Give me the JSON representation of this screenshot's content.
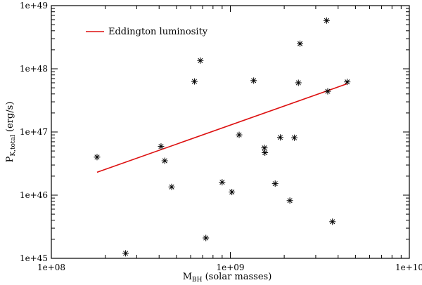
{
  "chart_data": {
    "type": "scatter",
    "xlabel": {
      "main": "M",
      "sub": "BH",
      "rest": " (solar masses)"
    },
    "ylabel": {
      "main": "P",
      "sub": "K,total",
      "rest": " (erg/s)"
    },
    "xscale": "log",
    "yscale": "log",
    "xlim": [
      100000000.0,
      10000000000.0
    ],
    "ylim": [
      1e+45,
      1e+49
    ],
    "xticks": [
      {
        "value": 100000000.0,
        "label": "1e+08"
      },
      {
        "value": 1000000000.0,
        "label": "1e+09"
      },
      {
        "value": 10000000000.0,
        "label": "1e+10"
      }
    ],
    "yticks": [
      {
        "value": 1e+45,
        "label": "1e+45"
      },
      {
        "value": 1e+46,
        "label": "1e+46"
      },
      {
        "value": 1e+47,
        "label": "1e+47"
      },
      {
        "value": 1e+48,
        "label": "1e+48"
      },
      {
        "value": 1e+49,
        "label": "1e+49"
      }
    ],
    "grid": false,
    "legend_position": "top-left",
    "series": [
      {
        "kind": "line",
        "name": "Eddington luminosity",
        "color": "#dd1111",
        "x": [
          180000000.0,
          4500000000.0
        ],
        "y": [
          2.3e+46,
          5.8e+47
        ]
      },
      {
        "kind": "scatter",
        "marker": "asterisk",
        "color": "#000000",
        "x": [
          180000000.0,
          260000000.0,
          410000000.0,
          430000000.0,
          470000000.0,
          630000000.0,
          680000000.0,
          730000000.0,
          900000000.0,
          1020000000.0,
          1120000000.0,
          1350000000.0,
          1550000000.0,
          1560000000.0,
          1780000000.0,
          1900000000.0,
          2150000000.0,
          2280000000.0,
          2400000000.0,
          2450000000.0,
          3450000000.0,
          3500000000.0,
          3720000000.0,
          4500000000.0
        ],
        "y": [
          4e+46,
          1.2e+45,
          5.9e+46,
          3.5e+46,
          1.35e+46,
          6.3e+47,
          1.35e+48,
          2.1e+45,
          1.6e+46,
          1.12e+46,
          9e+46,
          6.5e+47,
          5.6e+46,
          4.7e+46,
          1.52e+46,
          8.2e+46,
          8.2e+45,
          8.1e+46,
          6e+47,
          2.5e+48,
          5.8e+48,
          4.4e+47,
          3.8e+45,
          6.2e+47
        ]
      }
    ]
  }
}
